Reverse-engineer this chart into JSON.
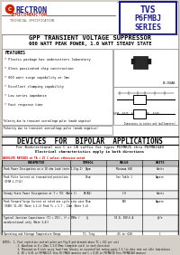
{
  "bg_color": "#d4d0c8",
  "white": "#ffffff",
  "black": "#000000",
  "dark_blue": "#1a1a8c",
  "red": "#cc2200",
  "company": "RECTRON",
  "company_sub": "SEMICONDUCTOR",
  "company_sub2": "TECHNICAL SPECIFICATION",
  "main_title": "GPP TRANSIENT VOLTAGE SUPPRESSOR",
  "sub_title": "600 WATT PEAK POWER, 1.0 WATT STEADY STATE",
  "features_title": "FEATURES",
  "features": [
    "* Plastic package has underwriters laboratory",
    "* Glass passivated chip construction",
    "* 600 watt surge capability at 1ms",
    "* Excellent clamping capability",
    "* Low series impedance",
    "* Fast response time"
  ],
  "note_box": "Polarity due to transient overvoltage pulse (anode negative)",
  "devices_title": "DEVICES  FOR  BIPOLAR  APPLICATIONS",
  "bipolar_line1": "For Bidirectional use C or CA suffix for types P6FMBJ5 thru P6FMBJ440",
  "bipolar_line2": "Electrical characteristics apply in both directions",
  "table_note_pre": "ABSOLUTE RATINGS at TA = 25 C unless otherwise noted",
  "table_header": [
    "PARAMETER",
    "SYMBOL",
    "VALUE",
    "UNITS"
  ],
  "table_rows": [
    [
      "Peak Power Dissipation on a 10 ohm Load (note 1,Fig.1)",
      "Pppm",
      "Minimum 600",
      "Watts"
    ],
    [
      "Peak Pulse Current at transmitted protection\n(IFSM 1.7/12)",
      "Ifsm",
      "See Table 1",
      "Ampere"
    ],
    [
      "Steady State Power Dissipation at T = 75C (Note 1)",
      "Pd(AV)",
      "1.0",
      "Watts"
    ],
    [
      "Peak Forward Surge Current at rated one cycle sine wave\n(JEDEC 51-20) (Note 1,2,3) Peak TL = 1.7 - 12ms (Note 3,4)",
      "Ifsm",
      "100",
      "Ampere"
    ],
    [
      "Typical Junction Capacitance (TJ = 25C), (f = 1MHz /\nunidirectional only (Note 3,4))",
      "Cj",
      "50.0, 50V-6 A",
      "pF/e"
    ],
    [
      "Operating and Storage Temperature Range",
      "TJ, Tstg",
      "-65 to +150",
      "C"
    ]
  ],
  "notes_lines": [
    "NOTES:  1. Fast repetition control pulse per Fig.8 and derated above TJ = 25C per unit",
    "           2. Waveform is 8 x 20ms 1 3.0 Ohms (complete unit) in each direction",
    "           3. Measured on 8 inch sq.sq load from library in uncontrolled rating apply 1.5 (in data rate not idle limitations",
    "           4. AT = 0.01 in P6FMBJ4.0 thru P6 FMBJ6 measure and C = 0.05 in P6FMBJ10 thru P6FMBJ440 measure"
  ]
}
